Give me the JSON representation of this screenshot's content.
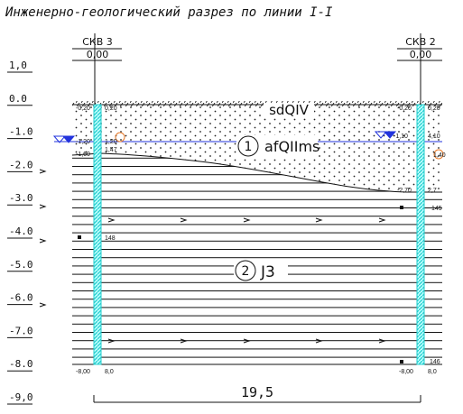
{
  "title": "Инженерно-геологический разрез по линии I-I",
  "scale": {
    "labels": [
      "1,0",
      "0.0",
      "-1.0",
      "-2.0",
      "-3.0",
      "-4.0",
      "-5.0",
      "-6.0",
      "-7.0",
      "-8.0",
      "-9,0"
    ]
  },
  "boreholes": [
    {
      "name": "СКВ 3",
      "elevation": "0,00",
      "notes": [
        "-0,20",
        "0,20",
        "-1,20",
        "1,20",
        "-1,60",
        "1,47",
        "148",
        "-8,00",
        "8,0"
      ]
    },
    {
      "name": "СКВ 2",
      "elevation": "0,00",
      "notes": [
        "-0,20",
        "0,20",
        "-1,10",
        "4,10",
        "1,40",
        "-2,70",
        "2,7",
        "145",
        "146",
        "-8,00",
        "8,0"
      ]
    }
  ],
  "surface_layer": "sdQIV",
  "layers": [
    {
      "index": "1",
      "name": "afQIIms"
    },
    {
      "index": "2",
      "name": "J3"
    }
  ],
  "distance": "19,5"
}
